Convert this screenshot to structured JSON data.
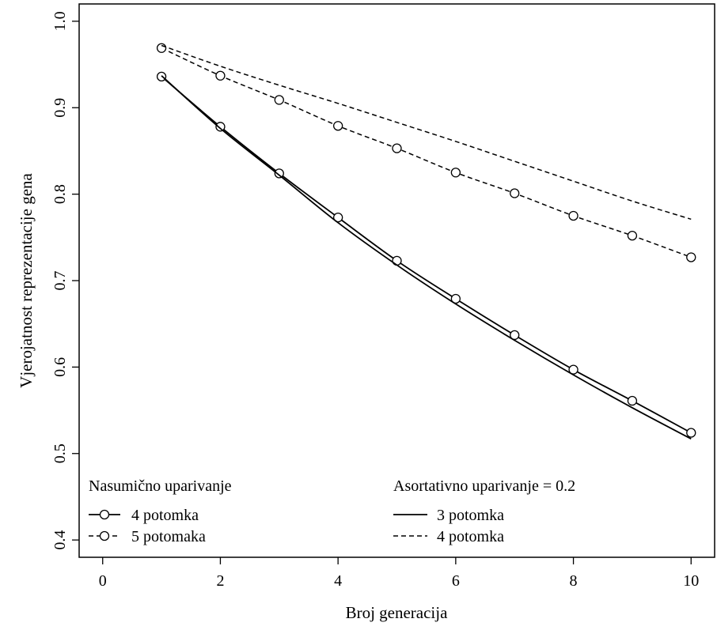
{
  "chart_data": {
    "type": "line",
    "xlabel": "Broj generacija",
    "ylabel": "Vjerojatnost reprezentacije gena",
    "xlim": [
      -0.4,
      10.4
    ],
    "ylim": [
      0.38,
      1.02
    ],
    "xticks": [
      0,
      2,
      4,
      6,
      8,
      10
    ],
    "yticks": [
      0.4,
      0.5,
      0.6,
      0.7,
      0.8,
      0.9,
      1.0
    ],
    "xtick_labels": [
      "0",
      "2",
      "4",
      "6",
      "8",
      "10"
    ],
    "ytick_labels": [
      "0.4",
      "0.5",
      "0.6",
      "0.7",
      "0.8",
      "0.9",
      "1.0"
    ],
    "grid": false,
    "legend_groups": [
      {
        "title": "Nasumično uparivanje",
        "entries": [
          "4 potomka",
          "5 potomaka"
        ]
      },
      {
        "title": "Asortativno uparivanje = 0.2",
        "entries": [
          "3 potomka",
          "4 potomka"
        ]
      }
    ],
    "series": [
      {
        "name": "4 potomka",
        "group": "Nasumično uparivanje",
        "line": "solid",
        "marker": "circle",
        "x": [
          1,
          2,
          3,
          4,
          5,
          6,
          7,
          8,
          9,
          10
        ],
        "y": [
          0.936,
          0.878,
          0.824,
          0.773,
          0.723,
          0.679,
          0.637,
          0.597,
          0.561,
          0.524
        ]
      },
      {
        "name": "5 potomaka",
        "group": "Nasumično uparivanje",
        "line": "dashed",
        "marker": "circle",
        "x": [
          1,
          2,
          3,
          4,
          5,
          6,
          7,
          8,
          9,
          10
        ],
        "y": [
          0.969,
          0.937,
          0.909,
          0.879,
          0.853,
          0.825,
          0.801,
          0.775,
          0.752,
          0.727
        ]
      },
      {
        "name": "3 potomka",
        "group": "Asortativno uparivanje = 0.2",
        "line": "solid",
        "marker": "none",
        "x": [
          1,
          2,
          3,
          4,
          5,
          6,
          7,
          8,
          9,
          10
        ],
        "y": [
          0.937,
          0.876,
          0.822,
          0.767,
          0.718,
          0.673,
          0.631,
          0.591,
          0.553,
          0.517
        ]
      },
      {
        "name": "4 potomka",
        "group": "Asortativno uparivanje = 0.2",
        "line": "dashed",
        "marker": "none",
        "x": [
          1,
          2,
          3,
          4,
          5,
          6,
          7,
          8,
          9,
          10
        ],
        "y": [
          0.972,
          0.948,
          0.926,
          0.905,
          0.883,
          0.861,
          0.838,
          0.815,
          0.792,
          0.771
        ]
      }
    ]
  }
}
